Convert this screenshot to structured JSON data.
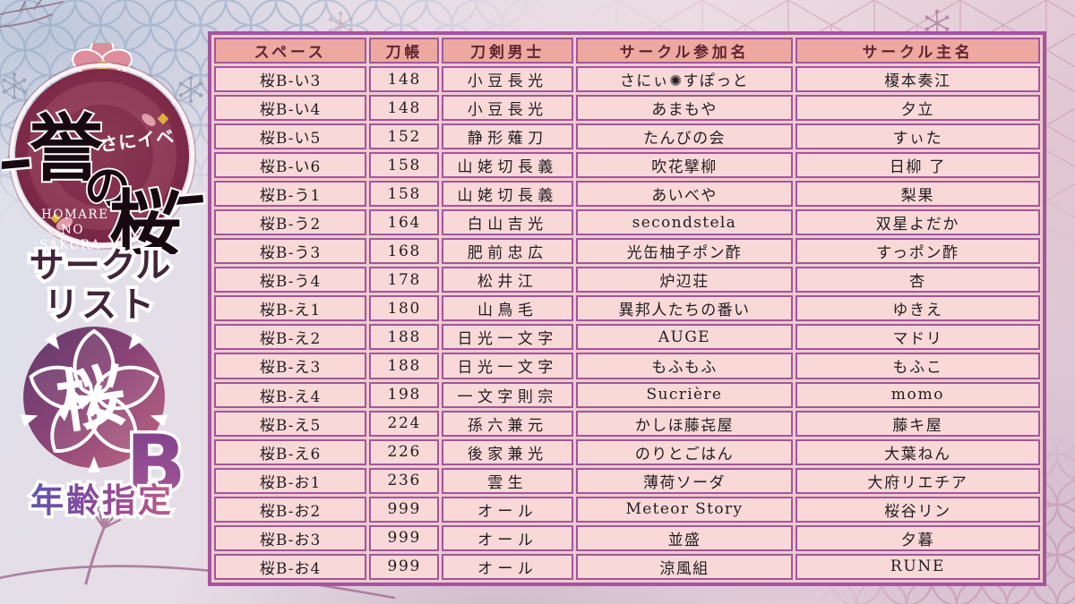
{
  "title": "誉の桜 サークルリスト 桜B 年齢指定",
  "sidebar": {
    "logo": {
      "kanji_1": "誉",
      "kanji_2": "の",
      "kanji_3": "桜",
      "katakana": "さにイベ",
      "romaji_line1": "HOMARE",
      "romaji_line2": "NO",
      "romaji_line3": "SAKURA"
    },
    "list_title_line1": "サークル",
    "list_title_line2": "リスト",
    "block_badge": {
      "kanji": "桜",
      "letter": "B"
    },
    "age_restriction_label": "年齢指定"
  },
  "table": {
    "headers": [
      "スペース",
      "刀帳",
      "刀剣男士",
      "サークル参加名",
      "サークル主名"
    ],
    "rows": [
      [
        "桜B-い3",
        "148",
        "小豆長光",
        "さにぃ✺すぽっと",
        "榎本奏江"
      ],
      [
        "桜B-い4",
        "148",
        "小豆長光",
        "あまもや",
        "夕立"
      ],
      [
        "桜B-い5",
        "152",
        "静形薙刀",
        "たんびの会",
        "すぃた"
      ],
      [
        "桜B-い6",
        "158",
        "山姥切長義",
        "吹花擘柳",
        "日柳 了"
      ],
      [
        "桜B-う1",
        "158",
        "山姥切長義",
        "あいべや",
        "梨果"
      ],
      [
        "桜B-う2",
        "164",
        "白山吉光",
        "secondstela",
        "双星よだか"
      ],
      [
        "桜B-う3",
        "168",
        "肥前忠広",
        "光缶柚子ポン酢",
        "すっポン酢"
      ],
      [
        "桜B-う4",
        "178",
        "松井江",
        "炉辺荘",
        "杏"
      ],
      [
        "桜B-え1",
        "180",
        "山鳥毛",
        "異邦人たちの番い",
        "ゆきえ"
      ],
      [
        "桜B-え2",
        "188",
        "日光一文字",
        "AUGE",
        "マドリ"
      ],
      [
        "桜B-え3",
        "188",
        "日光一文字",
        "もふもふ",
        "もふこ"
      ],
      [
        "桜B-え4",
        "198",
        "一文字則宗",
        "Sucrière",
        "momo"
      ],
      [
        "桜B-え5",
        "224",
        "孫六兼元",
        "かしほ藤㐂屋",
        "藤キ屋"
      ],
      [
        "桜B-え6",
        "226",
        "後家兼光",
        "のりとごはん",
        "大葉ねん"
      ],
      [
        "桜B-お1",
        "236",
        "雲生",
        "薄荷ソーダ",
        "大府リエチア"
      ],
      [
        "桜B-お2",
        "999",
        "オール",
        "Meteor Story",
        "桜谷リン"
      ],
      [
        "桜B-お3",
        "999",
        "オール",
        "並盛",
        "夕暮"
      ],
      [
        "桜B-お4",
        "999",
        "オール",
        "涼風組",
        "RUNE"
      ]
    ]
  },
  "colors": {
    "table_border": "#a4559c",
    "header_bg": "#eda8a1",
    "header_text": "#5f2531",
    "row_bg": "#f8d9d8",
    "row_text": "#221c20",
    "logo_circle": "#7c2947",
    "badge_gradient_start": "#5f3a6b",
    "badge_gradient_end": "#c06a84",
    "age_text_gradient_start": "#6257aa",
    "age_text_gradient_end": "#bb5f8a",
    "list_title_text": "#422438"
  }
}
